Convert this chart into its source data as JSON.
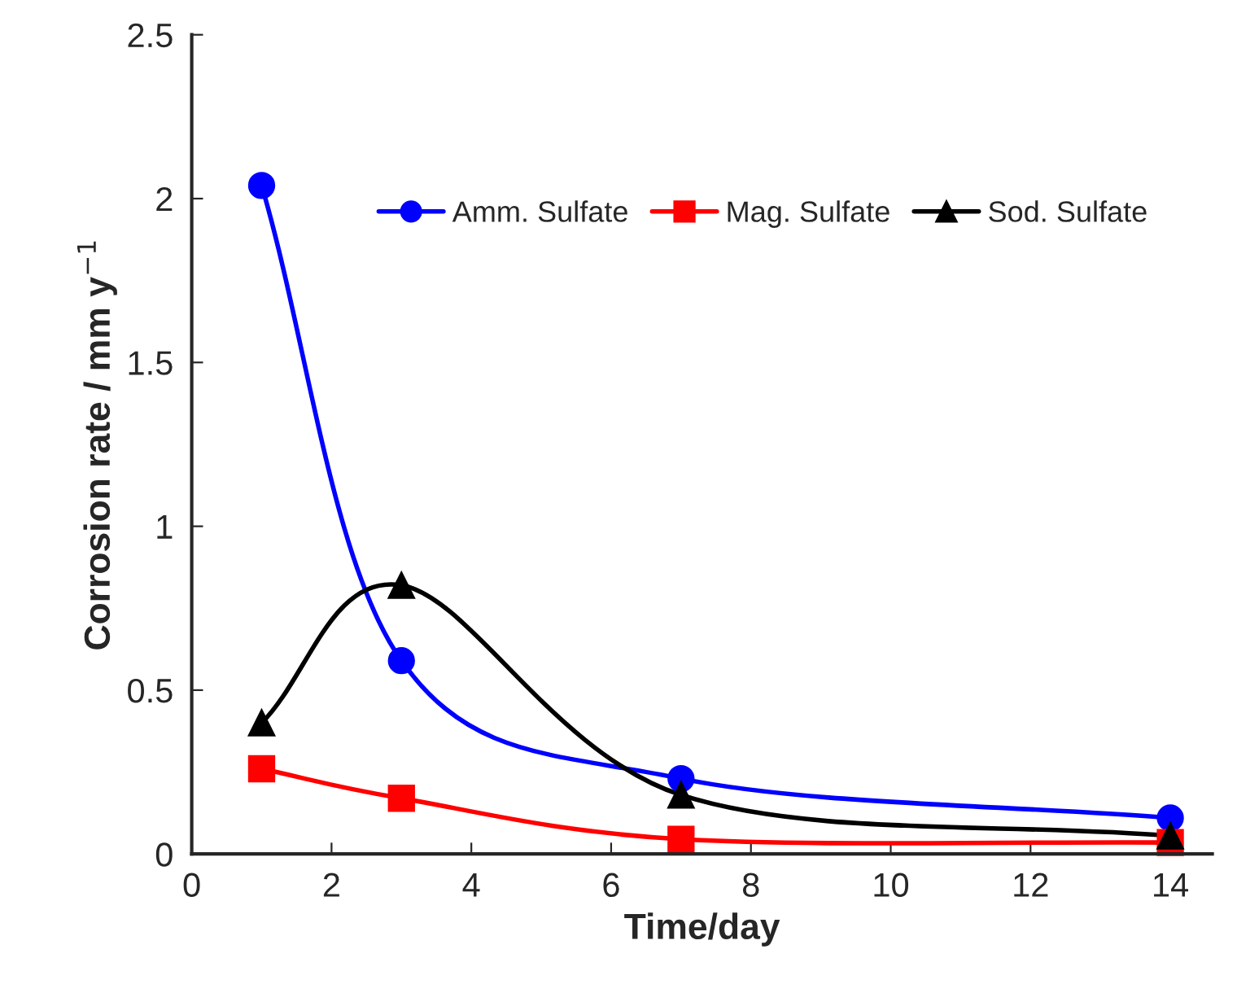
{
  "chart_data": {
    "type": "line",
    "xlabel": "Time/day",
    "ylabel": "Corrosion rate / mm y$^{−1}$",
    "x": [
      1,
      3,
      7,
      14
    ],
    "series": [
      {
        "name": "Amm. Sulfate",
        "color": "#0000ff",
        "marker": "circle",
        "values": [
          2.04,
          0.59,
          0.23,
          0.11
        ]
      },
      {
        "name": "Mag. Sulfate",
        "color": "#ff0000",
        "marker": "square",
        "values": [
          0.26,
          0.17,
          0.045,
          0.035
        ]
      },
      {
        "name": "Sod. Sulfate",
        "color": "#000000",
        "marker": "triangle",
        "values": [
          0.4,
          0.82,
          0.18,
          0.055
        ]
      }
    ],
    "xlim": [
      0,
      14.6
    ],
    "xticks": [
      0,
      2,
      4,
      6,
      8,
      10,
      12,
      14
    ],
    "ylim": [
      0,
      2.5
    ],
    "yticks": [
      0,
      0.5,
      1,
      1.5,
      2,
      2.5
    ],
    "grid": false,
    "legend": "top",
    "line_style": "solid"
  }
}
